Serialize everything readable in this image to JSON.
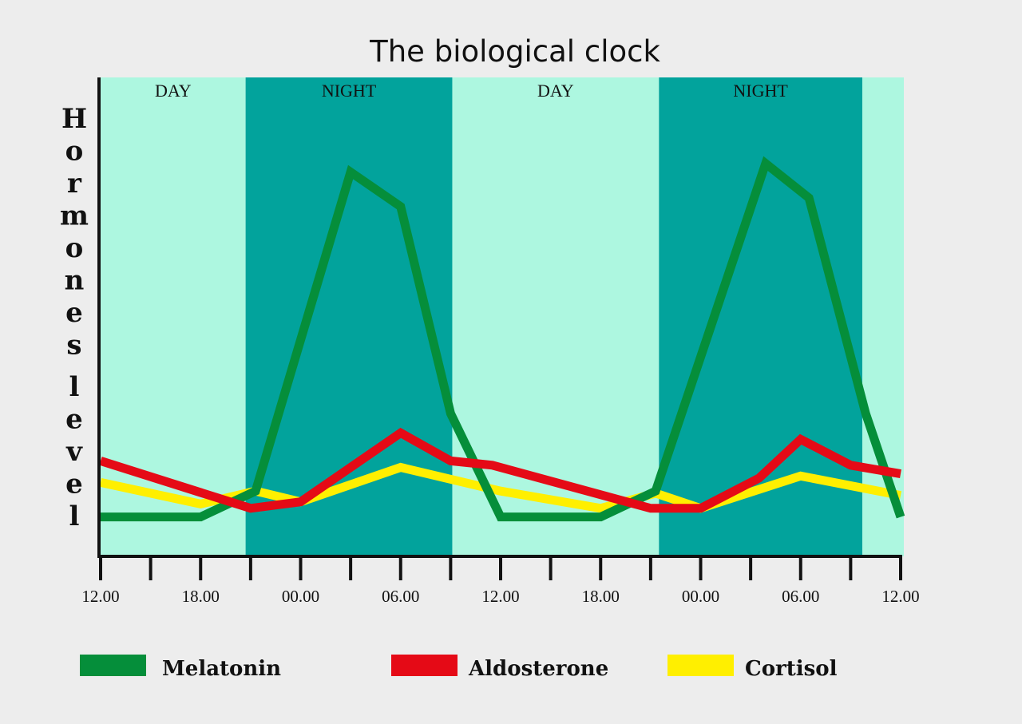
{
  "chart_data": {
    "type": "line",
    "title": "The biological clock",
    "ylabel": "Hormones level",
    "xlabel": "",
    "x_tick_labels": [
      "12.00",
      "18.00",
      "00.00",
      "06.00",
      "12.00",
      "18.00",
      "00.00",
      "06.00",
      "12.00"
    ],
    "x_hours": [
      0,
      6,
      12,
      18,
      24,
      30,
      36,
      42,
      48
    ],
    "xlim": [
      0,
      48
    ],
    "ylim": [
      0,
      100
    ],
    "grid": false,
    "legend_position": "bottom",
    "bands": [
      {
        "label": "DAY",
        "start": 0,
        "end": 8.7,
        "color": "#adf7e0"
      },
      {
        "label": "NIGHT",
        "start": 8.7,
        "end": 21.1,
        "color": "#02a39c"
      },
      {
        "label": "DAY",
        "start": 21.1,
        "end": 33.5,
        "color": "#adf7e0"
      },
      {
        "label": "NIGHT",
        "start": 33.5,
        "end": 45.7,
        "color": "#02a39c"
      },
      {
        "label": "",
        "start": 45.7,
        "end": 48,
        "color": "#adf7e0"
      }
    ],
    "series": [
      {
        "name": "Melatonin",
        "color": "#058e3a",
        "x": [
          0,
          6,
          9.3,
          15,
          18,
          21,
          24,
          30,
          33.3,
          39.9,
          42.5,
          45.9,
          48
        ],
        "y": [
          6,
          6,
          12,
          86,
          78,
          30,
          6,
          6,
          12,
          88,
          80,
          30,
          6
        ]
      },
      {
        "name": "Aldosterone",
        "color": "#e50a16",
        "x": [
          0,
          9,
          12,
          18,
          21,
          23.5,
          33,
          36,
          39.5,
          42,
          45,
          48
        ],
        "y": [
          19,
          8,
          9.5,
          25.5,
          19,
          18,
          8,
          8,
          15,
          24,
          18,
          16
        ]
      },
      {
        "name": "Cortisol",
        "color": "#ffef00",
        "x": [
          0,
          6,
          9.3,
          12,
          18,
          24,
          30,
          33.3,
          36,
          42,
          48
        ],
        "y": [
          14,
          9,
          12,
          9.5,
          17.5,
          12,
          8,
          11.5,
          8,
          15.5,
          11
        ]
      }
    ]
  }
}
